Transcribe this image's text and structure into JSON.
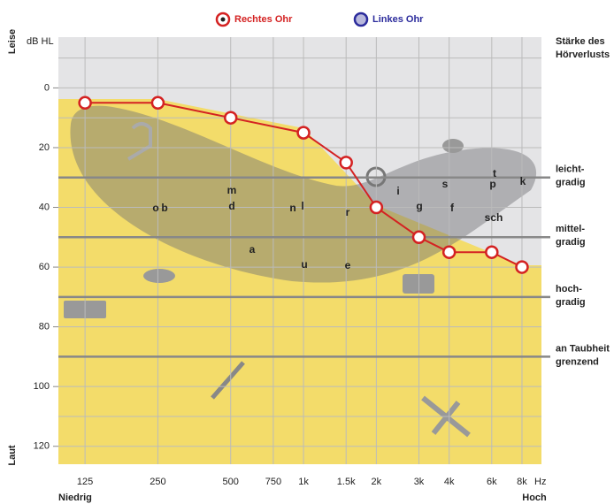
{
  "chart_data": {
    "type": "line",
    "legend": [
      "Rechtes Ohr",
      "Linkes Ohr"
    ],
    "y_label": "dB HL",
    "y_top_label": "Leise",
    "y_bottom_label": "Laut",
    "x_left_label": "Niedrig",
    "x_right_label": "Hoch",
    "x_unit": "Hz",
    "right_title": [
      "Stärke des",
      "Hörverlusts"
    ],
    "x": [
      125,
      250,
      500,
      1000,
      1500,
      2000,
      3000,
      4000,
      6000,
      8000
    ],
    "series": [
      {
        "name": "Rechtes Ohr",
        "color": "#d42222",
        "values": [
          5,
          5,
          10,
          15,
          25,
          40,
          50,
          55,
          55,
          60
        ]
      },
      {
        "name": "Linkes Ohr",
        "color": "#2b2b9c",
        "values": [
          null,
          null,
          null,
          null,
          null,
          null,
          null,
          null,
          null,
          null
        ]
      }
    ],
    "log_x": true,
    "y_inverted": true,
    "xlim": [
      97,
      9630
    ],
    "ylim": [
      -17,
      126
    ],
    "xticks": [
      125,
      250,
      500,
      750,
      {
        "value": 1000,
        "label": "1k"
      },
      {
        "value": 1500,
        "label": "1.5k"
      },
      {
        "value": 2000,
        "label": "2k"
      },
      {
        "value": 3000,
        "label": "3k"
      },
      {
        "value": 4000,
        "label": "4k"
      },
      {
        "value": 6000,
        "label": "6k"
      },
      {
        "value": 8000,
        "label": "8k"
      }
    ],
    "yticks": [
      0,
      20,
      40,
      60,
      80,
      100,
      120
    ],
    "minor_yticks": [
      -10,
      10,
      30,
      50,
      70,
      90,
      110
    ],
    "severity_lines": [
      {
        "value": 30,
        "label": [
          "leicht-",
          "gradig"
        ]
      },
      {
        "value": 50,
        "label": [
          "mittel-",
          "gradig"
        ]
      },
      {
        "value": 70,
        "label": [
          "hoch-",
          "gradig"
        ]
      },
      {
        "value": 90,
        "label": [
          "an Taubheit",
          "grenzend"
        ]
      }
    ],
    "phonemes": [
      "o",
      "b",
      "m",
      "d",
      "n",
      "l",
      "a",
      "u",
      "e",
      "r",
      "i",
      "g",
      "s",
      "t",
      "p",
      "f",
      "k",
      "sch"
    ]
  }
}
